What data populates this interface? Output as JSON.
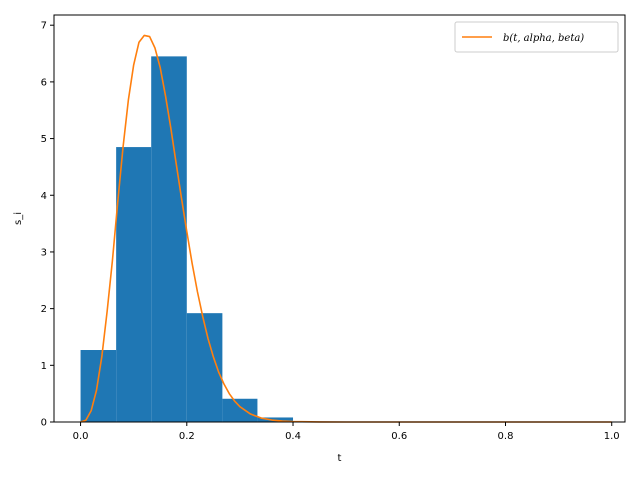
{
  "chart_data": {
    "type": "bar",
    "title": "",
    "xlabel": "t",
    "ylabel": "s_i",
    "xlim": [
      -0.05,
      1.025
    ],
    "ylim": [
      0,
      7.18
    ],
    "grid": false,
    "legend": {
      "placement": "top-right",
      "entries": [
        "b(t, alpha, beta)"
      ]
    },
    "x_ticks": [
      0.0,
      0.2,
      0.4,
      0.6,
      0.8,
      1.0
    ],
    "x_tick_labels": [
      "0.0",
      "0.2",
      "0.4",
      "0.6",
      "0.8",
      "1.0"
    ],
    "y_ticks": [
      0,
      1,
      2,
      3,
      4,
      5,
      6,
      7
    ],
    "y_tick_labels": [
      "0",
      "1",
      "2",
      "3",
      "4",
      "5",
      "6",
      "7"
    ],
    "histogram": {
      "color": "#1f77b4",
      "bin_edges": [
        0.0,
        0.067,
        0.133,
        0.2,
        0.267,
        0.333,
        0.4
      ],
      "values": [
        1.27,
        4.85,
        6.45,
        1.92,
        0.41,
        0.08
      ]
    },
    "series": [
      {
        "name": "b(t, alpha, beta)",
        "color": "#ff7f0e",
        "type": "line",
        "x": [
          0.0,
          0.01,
          0.02,
          0.03,
          0.04,
          0.05,
          0.06,
          0.07,
          0.08,
          0.09,
          0.1,
          0.11,
          0.12,
          0.13,
          0.14,
          0.15,
          0.16,
          0.17,
          0.18,
          0.19,
          0.2,
          0.21,
          0.22,
          0.23,
          0.24,
          0.25,
          0.26,
          0.27,
          0.28,
          0.29,
          0.3,
          0.32,
          0.34,
          0.36,
          0.38,
          0.4,
          0.45,
          0.5,
          0.6,
          0.7,
          0.8,
          0.9,
          1.0
        ],
        "y": [
          0.0,
          0.03,
          0.2,
          0.56,
          1.15,
          1.95,
          2.85,
          3.88,
          4.85,
          5.68,
          6.3,
          6.7,
          6.82,
          6.8,
          6.6,
          6.25,
          5.75,
          5.18,
          4.56,
          3.95,
          3.36,
          2.8,
          2.3,
          1.86,
          1.47,
          1.15,
          0.88,
          0.67,
          0.5,
          0.37,
          0.27,
          0.14,
          0.07,
          0.035,
          0.017,
          0.008,
          0.002,
          0.0,
          0.0,
          0.0,
          0.0,
          0.0,
          0.0
        ]
      }
    ]
  }
}
